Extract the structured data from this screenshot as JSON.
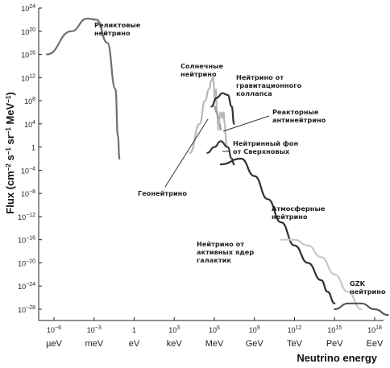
{
  "chart_data": {
    "type": "line",
    "title": "",
    "xlabel": "Neutrino energy",
    "ylabel": "Flux (cm^-2 s^-1 sr^-1 MeV^-1)",
    "ylabel_parts": {
      "prefix": "Flux (cm",
      "exp1": "−2",
      "s": " s",
      "exp2": "−1",
      "sr": " sr",
      "exp3": "−1",
      "mev": " MeV",
      "exp4": "−1",
      "suffix": ")"
    },
    "x_scale": "log",
    "y_scale": "log",
    "xlim_eV": [
      1e-07,
      1e+19
    ],
    "ylim": [
      1e-29,
      1e+24
    ],
    "grid": false,
    "x_ticks": [
      {
        "value": 1e-06,
        "base": "10",
        "exp": "−6"
      },
      {
        "value": 0.001,
        "base": "10",
        "exp": "−3"
      },
      {
        "value": 1,
        "base": "1",
        "exp": ""
      },
      {
        "value": 1000.0,
        "base": "10",
        "exp": "3"
      },
      {
        "value": 1000000.0,
        "base": "10",
        "exp": "6"
      },
      {
        "value": 1000000000.0,
        "base": "10",
        "exp": "9"
      },
      {
        "value": 1000000000000.0,
        "base": "10",
        "exp": "12"
      },
      {
        "value": 1000000000000000.0,
        "base": "10",
        "exp": "15"
      },
      {
        "value": 1e+18,
        "base": "10",
        "exp": "18"
      }
    ],
    "x_units": [
      {
        "value": 1e-06,
        "label": "µeV"
      },
      {
        "value": 0.001,
        "label": "meV"
      },
      {
        "value": 1,
        "label": "eV"
      },
      {
        "value": 1000.0,
        "label": "keV"
      },
      {
        "value": 1000000.0,
        "label": "MeV"
      },
      {
        "value": 1000000000.0,
        "label": "GeV"
      },
      {
        "value": 1000000000000.0,
        "label": "TeV"
      },
      {
        "value": 1000000000000000.0,
        "label": "PeV"
      },
      {
        "value": 1e+18,
        "label": "EeV"
      }
    ],
    "y_ticks": [
      {
        "value": 1e+24,
        "base": "10",
        "exp": "24"
      },
      {
        "value": 1e+20,
        "base": "10",
        "exp": "20"
      },
      {
        "value": 1e+16,
        "base": "10",
        "exp": "16"
      },
      {
        "value": 1000000000000.0,
        "base": "10",
        "exp": "12"
      },
      {
        "value": 100000000.0,
        "base": "10",
        "exp": "8"
      },
      {
        "value": 10000.0,
        "base": "10",
        "exp": "4"
      },
      {
        "value": 1,
        "base": "1",
        "exp": ""
      },
      {
        "value": 0.0001,
        "base": "10",
        "exp": "−4"
      },
      {
        "value": 1e-08,
        "base": "10",
        "exp": "−8"
      },
      {
        "value": 1e-12,
        "base": "10",
        "exp": "−12"
      },
      {
        "value": 1e-16,
        "base": "10",
        "exp": "−16"
      },
      {
        "value": 1e-20,
        "base": "10",
        "exp": "−20"
      },
      {
        "value": 1e-24,
        "base": "10",
        "exp": "−24"
      },
      {
        "value": 1e-28,
        "base": "10",
        "exp": "−28"
      }
    ],
    "series": [
      {
        "id": "relic",
        "color": "#707070",
        "x": [
          3e-07,
          2e-05,
          0.0003,
          0.0015,
          0.01,
          0.04,
          0.06,
          0.08
        ],
        "y": [
          1e+16,
          1e+20,
          1.5e+22,
          1e+22,
          1e+18,
          10000000000.0,
          100.0,
          0.01
        ]
      },
      {
        "id": "solar",
        "color": "#b8b8b8",
        "x": [
          15000.0,
          80000.0,
          200000.0,
          400000.0,
          600000.0,
          800000.0,
          1100000.0,
          1300000.0,
          1600000.0,
          2000000.0
        ],
        "y": [
          0.1,
          10000.0,
          100000000.0,
          10000000000.0,
          300000000000.0,
          1000000000000.0,
          100000000.0,
          10000000000.0,
          1000000.0,
          1000.0
        ]
      },
      {
        "id": "geo",
        "color": "#9a9a9a",
        "x": [
          1000000.0,
          1500000.0,
          2000000.0,
          2500000.0,
          3000000.0
        ],
        "y": [
          10000000.0,
          1000000.0,
          100000.0,
          10000.0,
          1000.0
        ]
      },
      {
        "id": "supernova",
        "color": "#303030",
        "x": [
          600000.0,
          1500000.0,
          4000000.0,
          10000000.0,
          20000000.0,
          30000000.0
        ],
        "y": [
          10000000.0,
          300000000.0,
          2000000000.0,
          1000000000.0,
          10000000.0,
          10000.0
        ]
      },
      {
        "id": "reactor",
        "color": "#b8b8b8",
        "x": [
          2000000.0,
          3000000.0,
          4000000.0,
          5000000.0,
          6000000.0,
          7000000.0,
          8000000.0
        ],
        "y": [
          10000.0,
          1000000.0,
          100000.0,
          1000000.0,
          10000.0,
          100.0,
          1.0
        ]
      },
      {
        "id": "dsnb",
        "color": "#3a3a3a",
        "x": [
          300000.0,
          1000000.0,
          3000000.0,
          10000000.0,
          20000000.0,
          30000000.0
        ],
        "y": [
          0.1,
          1.0,
          10.0,
          1.0,
          0.01,
          0.001
        ]
      },
      {
        "id": "atmospheric",
        "color": "#303030",
        "x": [
          3000000.0,
          100000000.0,
          1000000000.0,
          10000000000.0,
          100000000000.0,
          1000000000000.0,
          10000000000000.0,
          100000000000000.0,
          300000000000000.0,
          1000000000000000.0
        ],
        "y": [
          0.001,
          0.01,
          1e-05,
          1e-09,
          1e-13,
          1e-17,
          1e-20,
          1e-23,
          1e-25,
          1e-27
        ]
      },
      {
        "id": "agn",
        "color": "#c8c8c8",
        "x": [
          100000000000.0,
          1000000000000.0,
          10000000000000.0,
          100000000000000.0,
          1000000000000000.0,
          1e+16,
          1e+17
        ],
        "y": [
          1e-16,
          1e-16,
          1e-17,
          1e-19,
          1e-22,
          1e-25,
          1e-28
        ]
      },
      {
        "id": "gzk",
        "color": "#555555",
        "x": [
          1000000000000000.0,
          1e+16,
          1e+17,
          1e+18,
          1e+19
        ],
        "y": [
          1e-28,
          1e-27,
          1e-27,
          1e-28,
          1e-29
        ]
      }
    ],
    "annotations": [
      {
        "name": "relic-label",
        "lines": [
          "Реликтовые",
          "нейтрино"
        ]
      },
      {
        "name": "solar-label",
        "lines": [
          "Солнечные",
          "нейтрино"
        ]
      },
      {
        "name": "supernova-label",
        "lines": [
          "Нейтрино от",
          "гравитационного",
          "коллапса"
        ]
      },
      {
        "name": "reactor-label",
        "lines": [
          "Реакторные",
          "антинейтрино"
        ]
      },
      {
        "name": "dsnb-label",
        "lines": [
          "Нейтринный фон",
          "от Сверхновых"
        ]
      },
      {
        "name": "geo-label",
        "lines": [
          "Геонейтрино"
        ]
      },
      {
        "name": "atmospheric-label",
        "lines": [
          "Атмосферные",
          "нейтрино"
        ]
      },
      {
        "name": "agn-label",
        "lines": [
          "Нейтрино от",
          "активных ядер",
          "галактик"
        ]
      },
      {
        "name": "gzk-label",
        "lines": [
          "GZK",
          "нейтрино"
        ]
      }
    ]
  }
}
